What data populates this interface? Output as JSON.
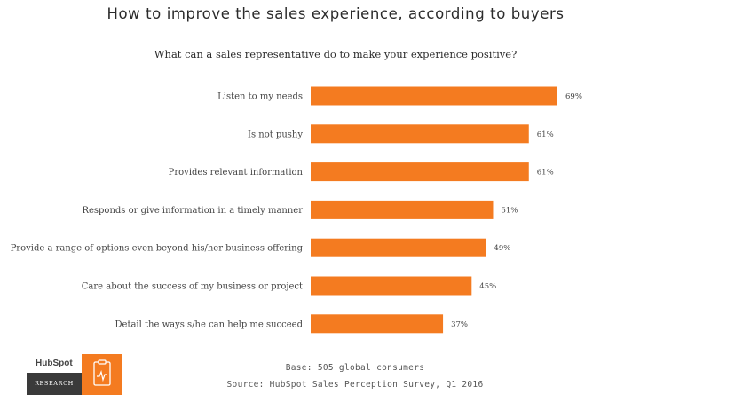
{
  "chart_data": {
    "type": "bar",
    "orientation": "horizontal",
    "title": "How to improve the sales experience, according to buyers",
    "subtitle": "What can a sales representative do to make your experience positive?",
    "categories": [
      "Listen to my needs",
      "Is not pushy",
      "Provides relevant information",
      "Responds or give information in a timely manner",
      "Provide a range of options even beyond his/her business offering",
      "Care about the success of my business or project",
      "Detail the ways s/he can help me succeed"
    ],
    "values": [
      69,
      61,
      61,
      51,
      49,
      45,
      37
    ],
    "value_labels": [
      "69%",
      "61%",
      "61%",
      "51%",
      "49%",
      "45%",
      "37%"
    ],
    "xlim": [
      0,
      100
    ],
    "grid": false,
    "bar_color": "#f47b20"
  },
  "footer": {
    "base": "Base: 505 global consumers",
    "source": "Source: HubSpot Sales Perception Survey, Q1 2016"
  },
  "logo": {
    "brand": "HubSpot",
    "tag": "RESEARCH",
    "icon": "clipboard-chart-icon"
  }
}
